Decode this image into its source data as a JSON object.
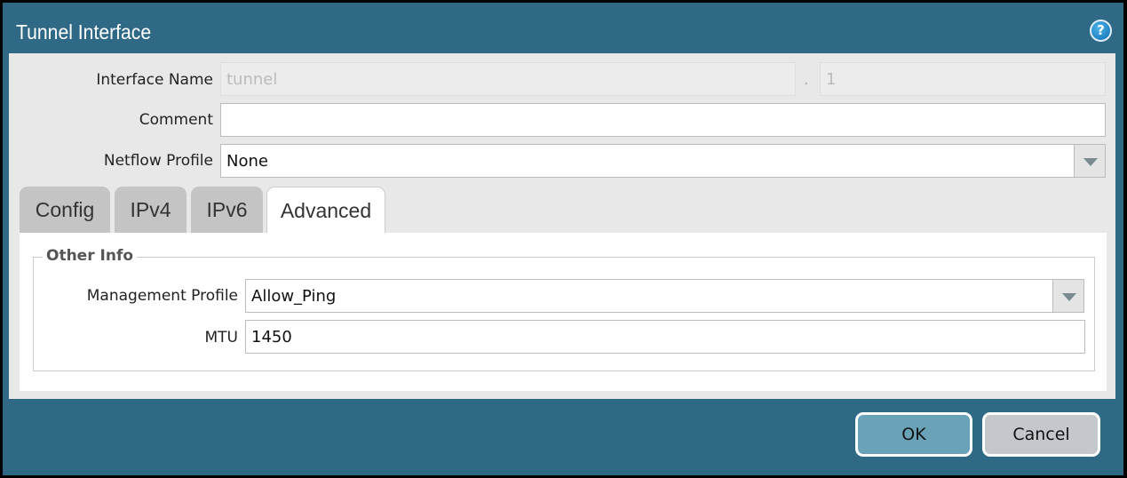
{
  "dialog": {
    "title": "Tunnel Interface",
    "help_icon": "help-icon"
  },
  "form": {
    "interface_name_label": "Interface Name",
    "interface_name_value": "tunnel",
    "separator": ".",
    "interface_suffix": "1",
    "comment_label": "Comment",
    "comment_value": "",
    "netflow_label": "Netflow Profile",
    "netflow_value": "None"
  },
  "tabs": [
    {
      "label": "Config"
    },
    {
      "label": "IPv4"
    },
    {
      "label": "IPv6"
    },
    {
      "label": "Advanced",
      "active": true
    }
  ],
  "other_info": {
    "legend": "Other Info",
    "mgmt_label": "Management Profile",
    "mgmt_value": "Allow_Ping",
    "mtu_label": "MTU",
    "mtu_value": "1450"
  },
  "buttons": {
    "ok": "OK",
    "cancel": "Cancel"
  },
  "colors": {
    "titlebar": "#2f6986",
    "ok": "#6aa3b8",
    "cancel": "#c4c7cc"
  }
}
